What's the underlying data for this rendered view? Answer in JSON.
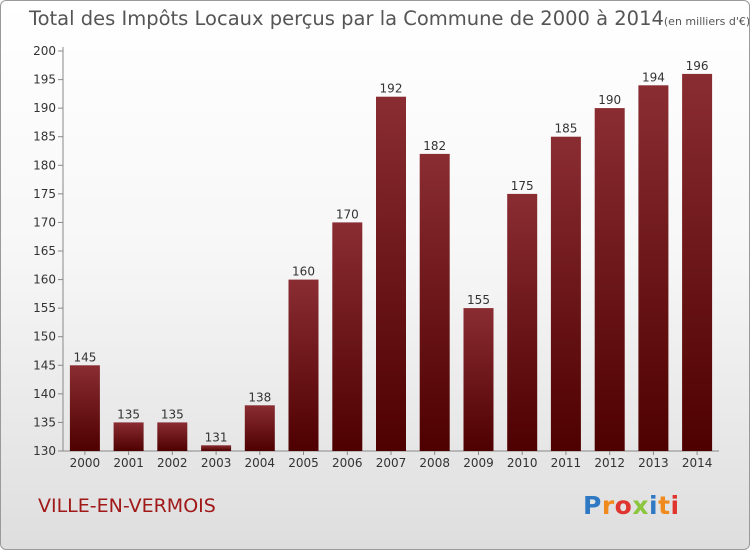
{
  "title": "Total des Impôts Locaux perçus par la Commune de 2000 à 2014",
  "unit_note": "(en milliers d'€)",
  "commune": "VILLE-EN-VERMOIS",
  "logo": {
    "text": "Proxiti",
    "colors": [
      "#2f78c4",
      "#f08a1c",
      "#e0352e",
      "#8cc63f",
      "#2f78c4",
      "#f08a1c",
      "#e0352e"
    ]
  },
  "colors": {
    "bar_top": "#8a2d33",
    "bar_bottom": "#4e0000",
    "commune_text": "#a01818"
  },
  "chart_data": {
    "type": "bar",
    "title": "Total des Impôts Locaux perçus par la Commune de 2000 à 2014",
    "categories": [
      "2000",
      "2001",
      "2002",
      "2003",
      "2004",
      "2005",
      "2006",
      "2007",
      "2008",
      "2009",
      "2010",
      "2011",
      "2012",
      "2013",
      "2014"
    ],
    "values": [
      145,
      135,
      135,
      131,
      138,
      160,
      170,
      192,
      182,
      155,
      175,
      185,
      190,
      194,
      196
    ],
    "ylim": [
      130,
      200
    ],
    "yticks": [
      130,
      135,
      140,
      145,
      150,
      155,
      160,
      165,
      170,
      175,
      180,
      185,
      190,
      195,
      200
    ],
    "grid": false,
    "data_labels": true
  }
}
